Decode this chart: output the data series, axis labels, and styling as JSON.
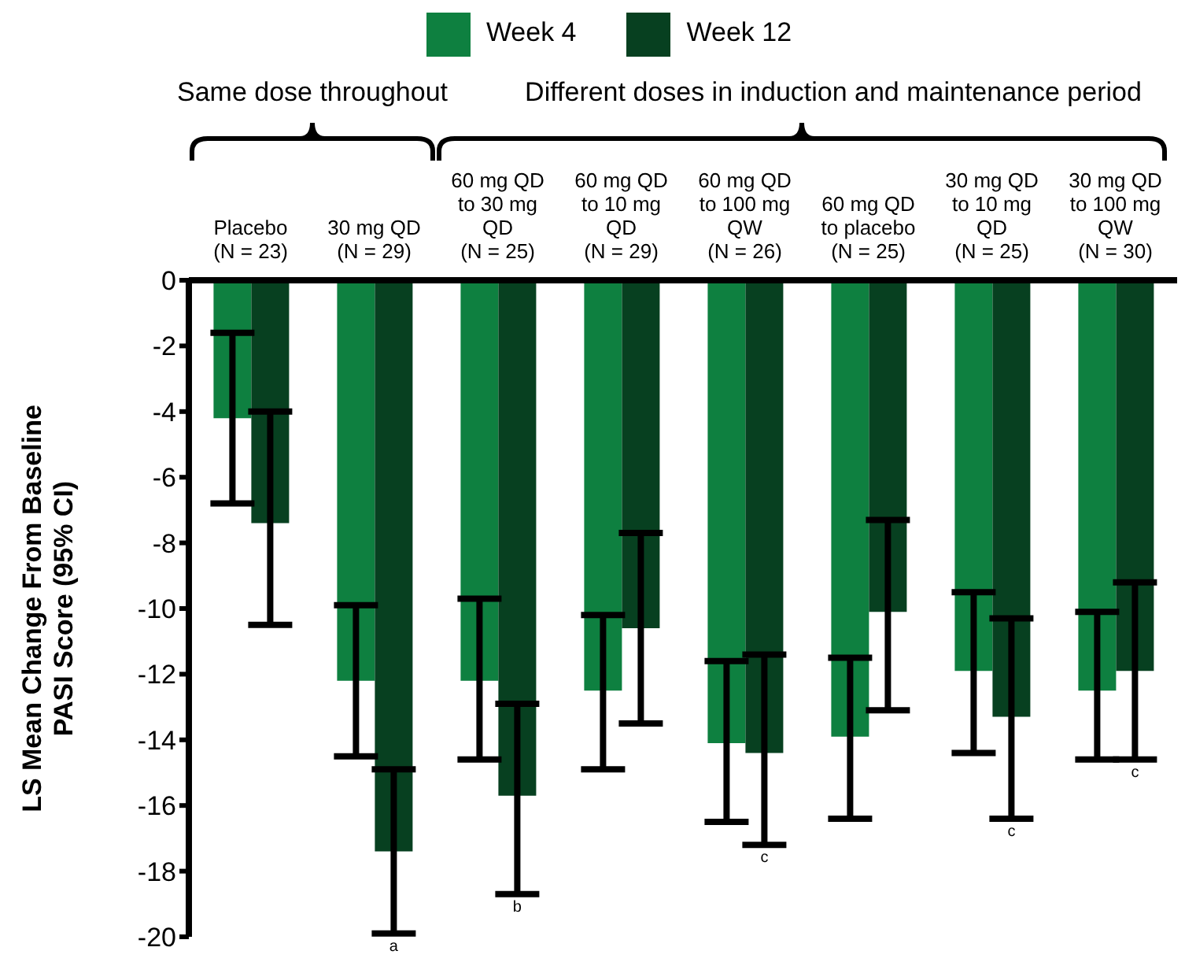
{
  "chart_data": {
    "type": "bar",
    "ylabel": "LS Mean Change From Baseline\nPASI Score (95% CI)",
    "categories": [
      "Placebo\n(N = 23)",
      "30 mg QD\n(N = 29)",
      "60 mg QD\nto 30 mg\nQD\n(N = 25)",
      "60 mg QD\nto 10 mg\nQD\n(N = 29)",
      "60 mg QD\nto 100 mg\nQW\n(N = 26)",
      "60 mg QD\nto placebo\n(N = 25)",
      "30 mg QD\nto 10 mg\nQD\n(N = 25)",
      "30 mg QD\nto 100 mg\nQW\n(N = 30)"
    ],
    "series": [
      {
        "name": "Week 4",
        "color": "#0e8040",
        "values": [
          -4.2,
          -12.2,
          -12.2,
          -12.5,
          -14.1,
          -13.9,
          -11.9,
          -12.5
        ],
        "errors": [
          [
            -6.8,
            -1.6
          ],
          [
            -14.5,
            -9.9
          ],
          [
            -14.6,
            -9.7
          ],
          [
            -14.9,
            -10.2
          ],
          [
            -16.5,
            -11.6
          ],
          [
            -16.4,
            -11.5
          ],
          [
            -14.4,
            -9.5
          ],
          [
            -14.6,
            -10.1
          ]
        ]
      },
      {
        "name": "Week 12",
        "color": "#074020",
        "values": [
          -7.4,
          -17.4,
          -15.7,
          -10.6,
          -14.4,
          -10.1,
          -13.3,
          -11.9
        ],
        "errors": [
          [
            -10.5,
            -4.0
          ],
          [
            -19.9,
            -14.9
          ],
          [
            -18.7,
            -12.9
          ],
          [
            -13.5,
            -7.7
          ],
          [
            -17.2,
            -11.4
          ],
          [
            -13.1,
            -7.3
          ],
          [
            -16.4,
            -10.3
          ],
          [
            -14.6,
            -9.2
          ]
        ]
      }
    ],
    "ylim": [
      -20,
      0
    ],
    "yticks": [
      -20,
      -18,
      -16,
      -14,
      -12,
      -10,
      -8,
      -6,
      -4,
      -2,
      0
    ],
    "grid": false,
    "legend": "top",
    "annotations": [
      "Same dose throughout",
      "Different doses in induction and maintenance period",
      {
        "text": "a",
        "x": "30 mg QD\n(N = 29)",
        "y": -19.9
      },
      {
        "text": "b",
        "x": "60 mg QD\nto 30 mg\nQD\n(N = 25)",
        "y": -18.7
      },
      {
        "text": "c",
        "x": "60 mg QD\nto 100 mg\nQW\n(N = 26)",
        "y": -17.2
      },
      {
        "text": "c",
        "x": "30 mg QD\nto 10 mg\nQD\n(N = 25)",
        "y": -16.4
      },
      {
        "text": "c",
        "x": "30 mg QD\nto 100 mg\nQW\n(N = 30)",
        "y": -14.6
      }
    ]
  }
}
